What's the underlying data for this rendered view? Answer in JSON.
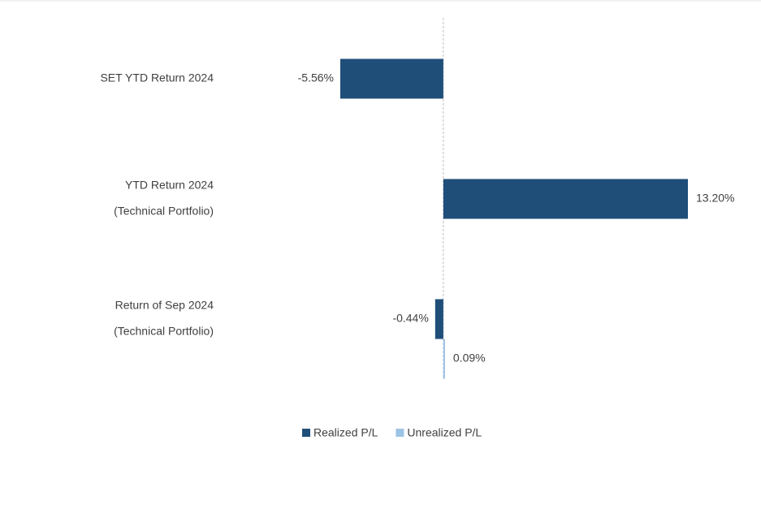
{
  "chart_data": {
    "type": "hbar",
    "categories": [
      [
        "SET YTD Return 2024"
      ],
      [
        "YTD Return 2024",
        "(Technical Portfolio)"
      ],
      [
        "Return of Sep 2024",
        "(Technical Portfolio)"
      ]
    ],
    "series": [
      {
        "name": "Realized P/L",
        "color": "#1f4e79",
        "values": [
          -5.56,
          13.2,
          -0.44
        ],
        "value_labels": [
          "-5.56%",
          "13.20%",
          "-0.44%"
        ]
      },
      {
        "name": "Unrealized P/L",
        "color": "#9dc3e6",
        "values": [
          null,
          null,
          0.09
        ],
        "value_labels": [
          null,
          null,
          "0.09%"
        ]
      }
    ],
    "legend": "bottom"
  }
}
